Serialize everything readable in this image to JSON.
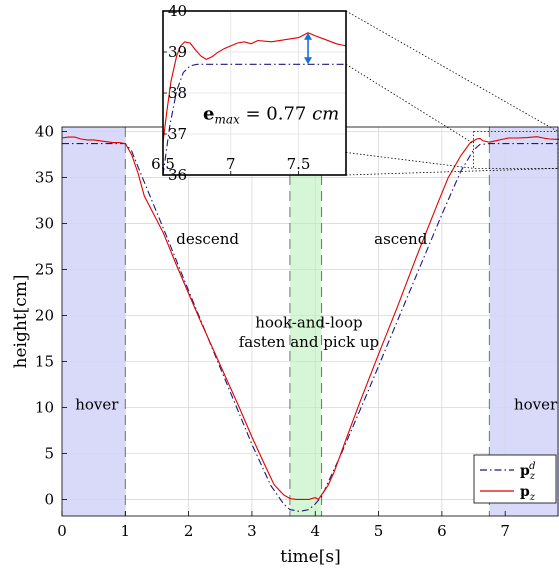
{
  "chart_data": {
    "type": "line",
    "xlabel": "time[s]",
    "ylabel": "height[cm]",
    "xlim": [
      0,
      7.85
    ],
    "ylim": [
      -1.8,
      40.5
    ],
    "xticks": [
      "0",
      "1",
      "2",
      "3",
      "4",
      "5",
      "6",
      "7"
    ],
    "yticks": [
      "0",
      "5",
      "10",
      "15",
      "20",
      "25",
      "30",
      "35",
      "40"
    ],
    "grid": true,
    "regions": [
      {
        "label": "hover",
        "x0": 0,
        "x1": 1.0,
        "color": "#d9dafa"
      },
      {
        "label": "hook-and-loop fasten and pick up",
        "x0": 3.6,
        "x1": 4.1,
        "color": "#d6f7d6"
      },
      {
        "label": "hover",
        "x0": 6.75,
        "x1": 7.85,
        "color": "#d9dafa"
      }
    ],
    "annotations": [
      {
        "text": "descend",
        "x": 2.3,
        "y": 27.8
      },
      {
        "text": "ascend",
        "x": 5.35,
        "y": 27.8
      },
      {
        "text": "hook-and-loop",
        "x": 3.9,
        "y": 18.7
      },
      {
        "text": "fasten and pick up",
        "x": 3.9,
        "y": 16.6
      },
      {
        "text": "hover",
        "x": 0.55,
        "y": 9.8
      },
      {
        "text": "hover",
        "x": 7.48,
        "y": 9.8
      }
    ],
    "legend_position": "bottom-right",
    "series": [
      {
        "name": "p_z^d",
        "legend_main": "p",
        "legend_sub": "z",
        "legend_sup": "d",
        "style": "dashdot",
        "color": "#1a1a80",
        "x": [
          0,
          0.5,
          1.0,
          1.1,
          1.3,
          1.6,
          2.0,
          2.5,
          3.0,
          3.3,
          3.5,
          3.6,
          3.75,
          3.9,
          4.0,
          4.1,
          4.2,
          4.4,
          4.8,
          5.2,
          5.6,
          6.0,
          6.3,
          6.5,
          6.6,
          6.75,
          7.0,
          7.5,
          7.85
        ],
        "y": [
          38.7,
          38.7,
          38.7,
          37.9,
          34.5,
          29.5,
          22.7,
          14.3,
          6.0,
          1.5,
          -0.5,
          -1.1,
          -1.3,
          -1.1,
          -0.5,
          0.3,
          1.8,
          4.8,
          11.2,
          17.8,
          24.4,
          31.0,
          35.7,
          38.0,
          38.6,
          38.7,
          38.7,
          38.7,
          38.7
        ]
      },
      {
        "name": "p_z",
        "legend_main": "p",
        "legend_sub": "z",
        "style": "solid",
        "color": "#e00000",
        "x": [
          0,
          0.1,
          0.2,
          0.3,
          0.4,
          0.5,
          0.6,
          0.7,
          0.8,
          0.9,
          1.0,
          1.1,
          1.2,
          1.3,
          1.45,
          1.6,
          1.8,
          2.0,
          2.2,
          2.5,
          2.8,
          3.0,
          3.2,
          3.35,
          3.5,
          3.6,
          3.7,
          3.8,
          3.9,
          4.0,
          4.05,
          4.1,
          4.2,
          4.3,
          4.5,
          4.7,
          5.0,
          5.3,
          5.6,
          5.9,
          6.1,
          6.3,
          6.45,
          6.55,
          6.6,
          6.65,
          6.75,
          6.85,
          6.95,
          7.05,
          7.2,
          7.35,
          7.5,
          7.6,
          7.7,
          7.85
        ],
        "y": [
          39.3,
          39.4,
          39.4,
          39.2,
          39.1,
          39.1,
          39.0,
          38.9,
          38.8,
          38.8,
          38.7,
          37.5,
          35.5,
          33.0,
          31.0,
          29.0,
          25.6,
          22.4,
          19.2,
          14.6,
          10.0,
          6.8,
          3.8,
          1.6,
          0.5,
          0.1,
          0.0,
          0.0,
          0.0,
          0.2,
          0.0,
          0.5,
          1.5,
          3.0,
          6.8,
          10.5,
          15.8,
          21.0,
          26.4,
          31.6,
          35.0,
          37.4,
          38.8,
          39.2,
          39.25,
          39.0,
          38.85,
          39.0,
          39.15,
          39.3,
          39.3,
          39.35,
          39.45,
          39.3,
          39.2,
          39.15
        ]
      }
    ],
    "inset": {
      "xlim": [
        6.5,
        7.85
      ],
      "ylim": [
        36,
        40
      ],
      "xticks": [
        "6.5",
        "7",
        "7.5"
      ],
      "yticks": [
        "36",
        "37",
        "38",
        "39",
        "40"
      ],
      "annotation_main": "e",
      "annotation_sub": "max",
      "annotation_value": "= 0.77",
      "annotation_unit": "cm",
      "arrow_x": 7.57,
      "arrow_y_from": 38.7,
      "arrow_y_to": 39.47,
      "arrow_color": "#1a6fd9",
      "series": [
        {
          "name": "p_z^d",
          "style": "dashdot",
          "color": "#1a1a80",
          "x": [
            6.5,
            6.55,
            6.6,
            6.65,
            6.7,
            6.75,
            6.8,
            7.0,
            7.5,
            7.85
          ],
          "y": [
            36.0,
            37.2,
            38.05,
            38.5,
            38.66,
            38.7,
            38.7,
            38.7,
            38.7,
            38.7
          ]
        },
        {
          "name": "p_z",
          "style": "solid",
          "color": "#e00000",
          "x": [
            6.5,
            6.53,
            6.56,
            6.6,
            6.63,
            6.66,
            6.7,
            6.74,
            6.78,
            6.82,
            6.86,
            6.9,
            6.95,
            7.0,
            7.05,
            7.1,
            7.15,
            7.2,
            7.3,
            7.4,
            7.5,
            7.57,
            7.62,
            7.7,
            7.78,
            7.85
          ],
          "y": [
            36.8,
            37.6,
            38.3,
            38.9,
            39.15,
            39.25,
            39.22,
            39.05,
            38.9,
            38.82,
            38.88,
            38.98,
            39.08,
            39.15,
            39.22,
            39.25,
            39.2,
            39.28,
            39.25,
            39.3,
            39.35,
            39.47,
            39.4,
            39.3,
            39.2,
            39.15
          ]
        }
      ]
    }
  }
}
